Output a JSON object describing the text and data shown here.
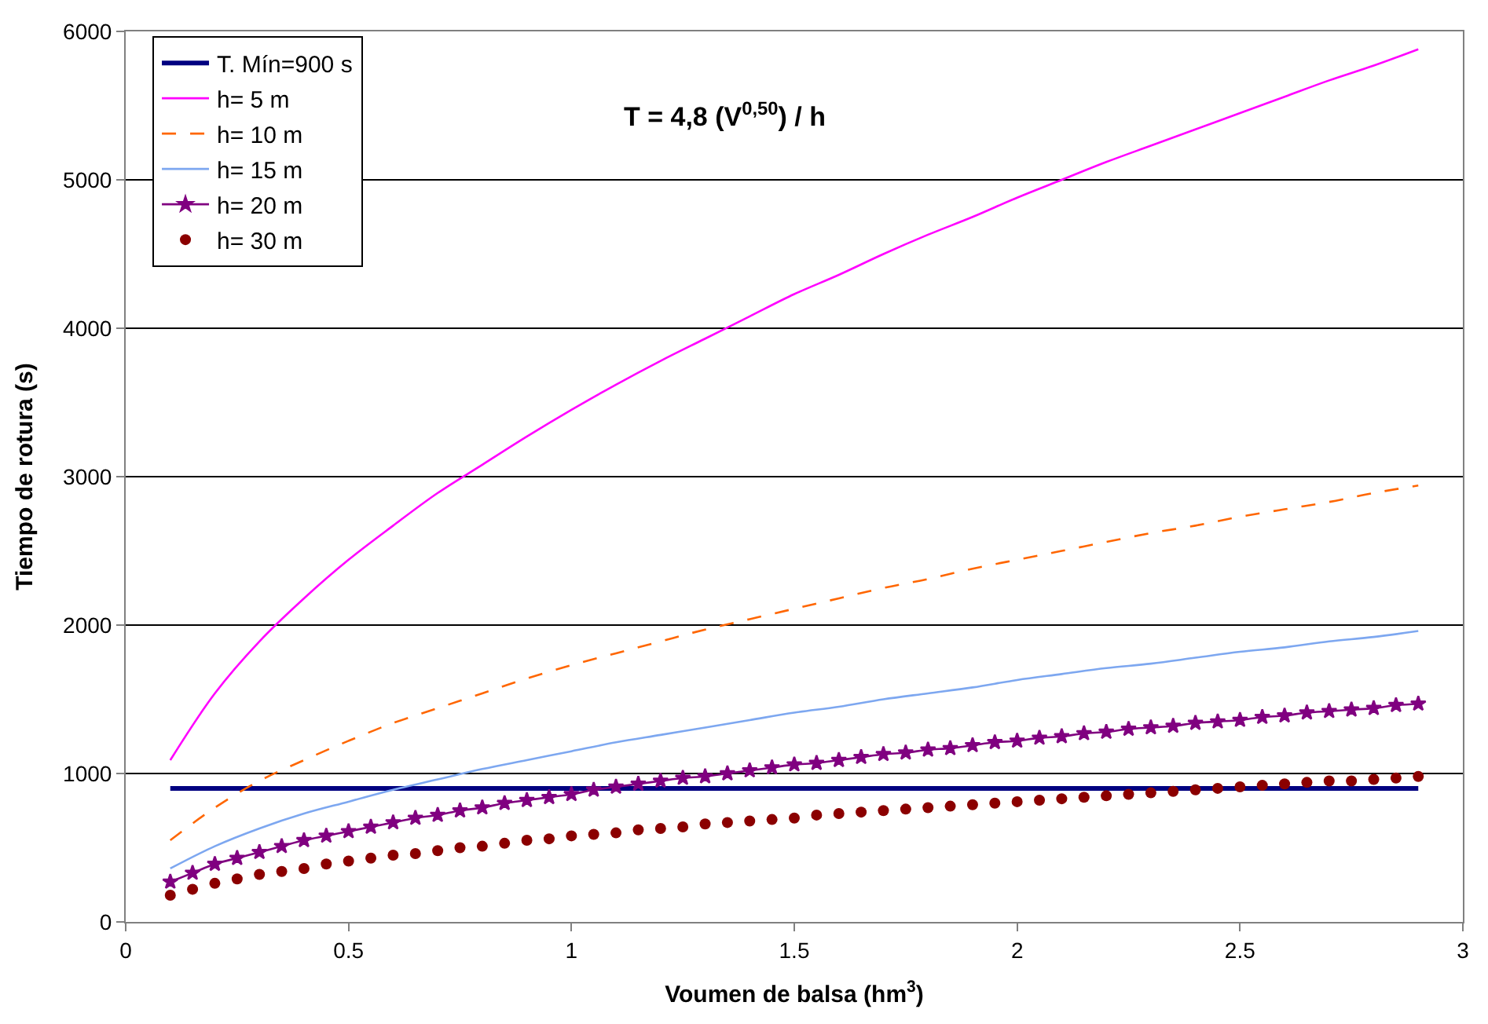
{
  "chart_data": {
    "type": "line",
    "annotations": [
      "T = 4,8 (V$^{0,50}$) / h"
    ],
    "xlabel": "Voumen de balsa (hm$^{3}$)",
    "ylabel": "Tiempo de rotura (s)",
    "xlim": [
      0,
      3
    ],
    "xticks": [
      0,
      0.5,
      1,
      1.5,
      2,
      2.5,
      3
    ],
    "ylim": [
      0,
      6000
    ],
    "yticks": [
      0,
      1000,
      2000,
      3000,
      4000,
      5000,
      6000
    ],
    "grid": "y",
    "legend": "top left",
    "series": [
      {
        "name": "T. Mín=900 s",
        "color": "#000080",
        "line_style": "solid",
        "marker": "none",
        "x": [
          0.1,
          2.9
        ],
        "values": [
          900,
          900
        ]
      },
      {
        "name": "h= 5 m",
        "color": "#ff00ff",
        "line_style": "solid",
        "marker": "none",
        "x": [
          0.1,
          0.2,
          0.3,
          0.4,
          0.5,
          0.6,
          0.7,
          0.8,
          0.9,
          1.0,
          1.1,
          1.2,
          1.3,
          1.4,
          1.5,
          1.6,
          1.7,
          1.8,
          1.9,
          2.0,
          2.1,
          2.2,
          2.3,
          2.4,
          2.5,
          2.6,
          2.7,
          2.8,
          2.9
        ],
        "values": [
          1090,
          1540,
          1890,
          2180,
          2440,
          2670,
          2890,
          3080,
          3270,
          3450,
          3620,
          3780,
          3930,
          4080,
          4230,
          4360,
          4500,
          4630,
          4750,
          4880,
          5000,
          5120,
          5230,
          5340,
          5450,
          5560,
          5670,
          5770,
          5880
        ]
      },
      {
        "name": "h= 10 m",
        "color": "#ff6600",
        "line_style": "dashed",
        "marker": "none",
        "x": [
          0.1,
          0.2,
          0.3,
          0.4,
          0.5,
          0.6,
          0.7,
          0.8,
          0.9,
          1.0,
          1.1,
          1.2,
          1.3,
          1.4,
          1.5,
          1.6,
          1.7,
          1.8,
          1.9,
          2.0,
          2.1,
          2.2,
          2.3,
          2.4,
          2.5,
          2.6,
          2.7,
          2.8,
          2.9
        ],
        "values": [
          550,
          770,
          950,
          1090,
          1220,
          1340,
          1440,
          1540,
          1640,
          1730,
          1810,
          1890,
          1970,
          2040,
          2110,
          2180,
          2250,
          2310,
          2380,
          2440,
          2500,
          2560,
          2620,
          2670,
          2730,
          2780,
          2830,
          2890,
          2940
        ]
      },
      {
        "name": "h= 15 m",
        "color": "#7da7f0",
        "line_style": "solid",
        "marker": "none",
        "x": [
          0.1,
          0.2,
          0.3,
          0.4,
          0.5,
          0.6,
          0.7,
          0.8,
          0.9,
          1.0,
          1.1,
          1.2,
          1.3,
          1.4,
          1.5,
          1.6,
          1.7,
          1.8,
          1.9,
          2.0,
          2.1,
          2.2,
          2.3,
          2.4,
          2.5,
          2.6,
          2.7,
          2.8,
          2.9
        ],
        "values": [
          360,
          510,
          630,
          730,
          810,
          890,
          960,
          1030,
          1090,
          1150,
          1210,
          1260,
          1310,
          1360,
          1410,
          1450,
          1500,
          1540,
          1580,
          1630,
          1670,
          1710,
          1740,
          1780,
          1820,
          1850,
          1890,
          1920,
          1960
        ]
      },
      {
        "name": "h= 20 m",
        "color": "#800080",
        "line_style": "solid",
        "marker": "star",
        "x": [
          0.1,
          0.15,
          0.2,
          0.25,
          0.3,
          0.35,
          0.4,
          0.45,
          0.5,
          0.55,
          0.6,
          0.65,
          0.7,
          0.75,
          0.8,
          0.85,
          0.9,
          0.95,
          1.0,
          1.05,
          1.1,
          1.15,
          1.2,
          1.25,
          1.3,
          1.35,
          1.4,
          1.45,
          1.5,
          1.55,
          1.6,
          1.65,
          1.7,
          1.75,
          1.8,
          1.85,
          1.9,
          1.95,
          2.0,
          2.05,
          2.1,
          2.15,
          2.2,
          2.25,
          2.3,
          2.35,
          2.4,
          2.45,
          2.5,
          2.55,
          2.6,
          2.65,
          2.7,
          2.75,
          2.8,
          2.85,
          2.9
        ],
        "values": [
          270,
          330,
          390,
          430,
          470,
          510,
          550,
          580,
          610,
          640,
          670,
          700,
          720,
          750,
          770,
          800,
          820,
          840,
          860,
          890,
          910,
          930,
          950,
          970,
          980,
          1000,
          1020,
          1040,
          1060,
          1070,
          1090,
          1110,
          1130,
          1140,
          1160,
          1170,
          1190,
          1210,
          1220,
          1240,
          1250,
          1270,
          1280,
          1300,
          1310,
          1320,
          1340,
          1350,
          1360,
          1380,
          1390,
          1410,
          1420,
          1430,
          1440,
          1460,
          1470
        ]
      },
      {
        "name": "h= 30 m",
        "type": "scatter",
        "color": "#8b0000",
        "marker": "circle",
        "x": [
          0.1,
          0.15,
          0.2,
          0.25,
          0.3,
          0.35,
          0.4,
          0.45,
          0.5,
          0.55,
          0.6,
          0.65,
          0.7,
          0.75,
          0.8,
          0.85,
          0.9,
          0.95,
          1.0,
          1.05,
          1.1,
          1.15,
          1.2,
          1.25,
          1.3,
          1.35,
          1.4,
          1.45,
          1.5,
          1.55,
          1.6,
          1.65,
          1.7,
          1.75,
          1.8,
          1.85,
          1.9,
          1.95,
          2.0,
          2.05,
          2.1,
          2.15,
          2.2,
          2.25,
          2.3,
          2.35,
          2.4,
          2.45,
          2.5,
          2.55,
          2.6,
          2.65,
          2.7,
          2.75,
          2.8,
          2.85,
          2.9
        ],
        "values": [
          180,
          220,
          260,
          290,
          320,
          340,
          360,
          390,
          410,
          430,
          450,
          460,
          480,
          500,
          510,
          530,
          550,
          560,
          580,
          590,
          600,
          620,
          630,
          640,
          660,
          670,
          680,
          690,
          700,
          720,
          730,
          740,
          750,
          760,
          770,
          780,
          790,
          800,
          810,
          820,
          830,
          840,
          850,
          860,
          870,
          880,
          890,
          900,
          910,
          920,
          930,
          940,
          950,
          950,
          960,
          970,
          980
        ]
      }
    ]
  }
}
